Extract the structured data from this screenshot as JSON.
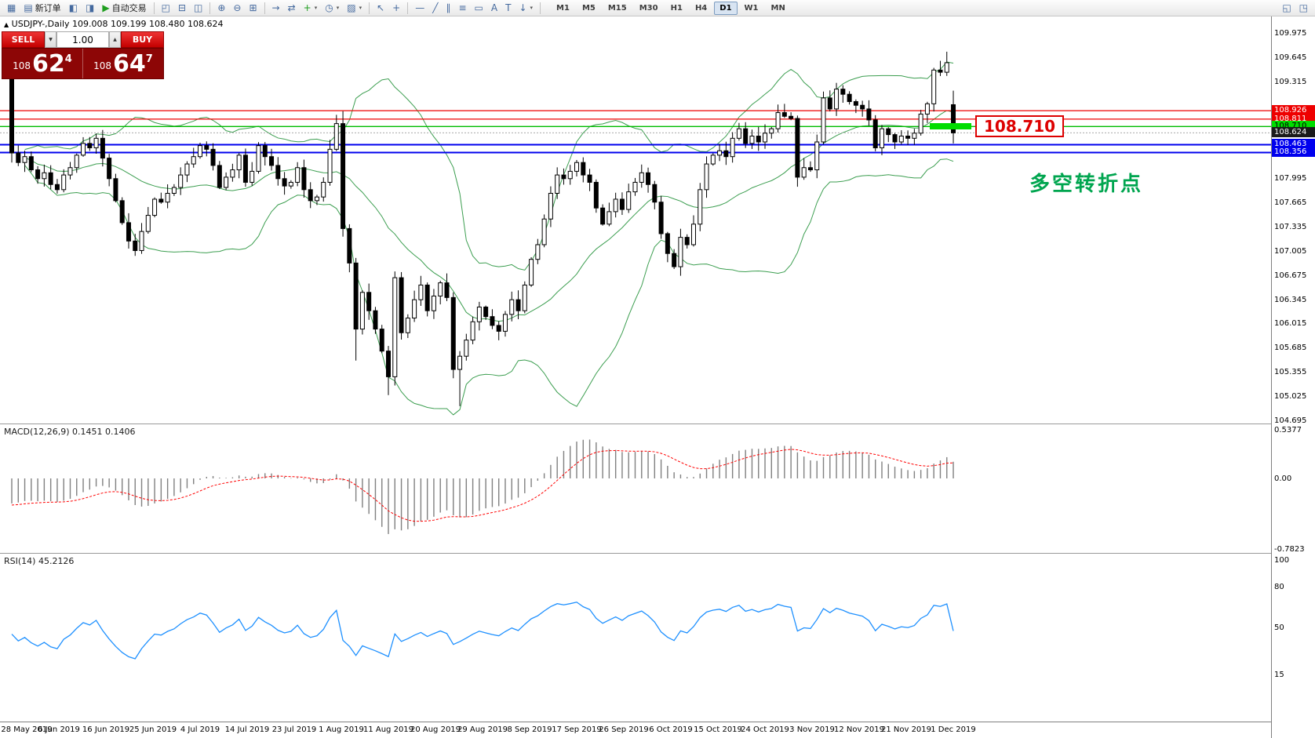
{
  "toolbar": {
    "caret_glyph": "▾",
    "items": [
      {
        "name": "new-chart-button",
        "glyph": "▦"
      },
      {
        "name": "new-order-button",
        "glyph": "▤",
        "label": "新订单"
      },
      {
        "name": "market-watch-icon",
        "glyph": "◧"
      },
      {
        "name": "navigator-icon",
        "glyph": "◨"
      },
      {
        "name": "autotrading-button",
        "glyph": "▶",
        "label": "自动交易",
        "color": "#1f9e1f"
      },
      {
        "type": "sep"
      },
      {
        "name": "tile-cascade-icon",
        "glyph": "◰"
      },
      {
        "name": "tile-horizontal-icon",
        "glyph": "⊟"
      },
      {
        "name": "tile-vertical-icon",
        "glyph": "◫"
      },
      {
        "type": "sep"
      },
      {
        "name": "zoom-in-icon",
        "glyph": "⊕"
      },
      {
        "name": "zoom-out-icon",
        "glyph": "⊖"
      },
      {
        "name": "grid-icon",
        "glyph": "⊞"
      },
      {
        "type": "sep"
      },
      {
        "name": "auto-scroll-icon",
        "glyph": "→"
      },
      {
        "name": "chart-shift-icon",
        "glyph": "⇄"
      },
      {
        "name": "add-indicator-button",
        "glyph": "+",
        "color": "#1f9e1f",
        "caret": true
      },
      {
        "name": "periodicity-button",
        "glyph": "◷",
        "caret": true
      },
      {
        "name": "templates-button",
        "glyph": "▨",
        "caret": true
      },
      {
        "type": "sep"
      },
      {
        "name": "cursor-icon",
        "glyph": "↖"
      },
      {
        "name": "crosshair-icon",
        "glyph": "+"
      },
      {
        "type": "sep"
      },
      {
        "name": "horizontal-line-icon",
        "glyph": "—"
      },
      {
        "name": "trendline-icon",
        "glyph": "╱"
      },
      {
        "name": "channel-icon",
        "glyph": "∥"
      },
      {
        "name": "fibonacci-icon",
        "glyph": "≡"
      },
      {
        "name": "shapes-icon",
        "glyph": "▭"
      },
      {
        "name": "text-icon",
        "glyph": "A"
      },
      {
        "name": "label-icon",
        "glyph": "T"
      },
      {
        "name": "arrows-icon",
        "glyph": "↓",
        "caret": true
      },
      {
        "type": "sep"
      }
    ],
    "timeframes": [
      "M1",
      "M5",
      "M15",
      "M30",
      "H1",
      "H4",
      "D1",
      "W1",
      "MN"
    ],
    "active_timeframe": "D1",
    "right_icons": [
      {
        "name": "charts-bar-icon",
        "glyph": "◱"
      },
      {
        "name": "docking-icon",
        "glyph": "◳"
      }
    ]
  },
  "chart_info": {
    "symbol_marker": "▲",
    "symbol_line": "USDJPY-,Daily",
    "ohlc": "109.008 109.199 108.480 108.624"
  },
  "trade_panel": {
    "sell_label": "SELL",
    "buy_label": "BUY",
    "volume": "1.00",
    "spin_up": "▲",
    "spin_down": "▼",
    "sell_price_small": "108",
    "sell_price_big": "62",
    "sell_price_sup": "4",
    "buy_price_small": "108",
    "buy_price_big": "64",
    "buy_price_sup": "7"
  },
  "annotations": {
    "price_callout": "108.710",
    "pivot_price": 108.71,
    "note_text": "多空转折点",
    "note_color": "#00a54f"
  },
  "price_axis": {
    "regular": [
      "109.975",
      "109.645",
      "109.315",
      "107.995",
      "107.665",
      "107.335",
      "107.005",
      "106.675",
      "106.345",
      "106.015",
      "105.685",
      "105.355",
      "105.025",
      "104.695"
    ],
    "marked": [
      {
        "value": "108.926",
        "bg": "#ee0000"
      },
      {
        "value": "108.811",
        "bg": "#ee0000"
      },
      {
        "value": "108.710",
        "bg": "#00dd00",
        "fg": "#000000"
      },
      {
        "value": "108.624",
        "bg": "#1a1a1a"
      },
      {
        "value": "108.463",
        "bg": "#0000ee"
      },
      {
        "value": "108.356",
        "bg": "#0000ee"
      }
    ]
  },
  "macd": {
    "label": "MACD(12,26,9) 0.1451 0.1406",
    "axis": [
      "0.5377",
      "0.00",
      "-0.7823"
    ]
  },
  "rsi": {
    "label": "RSI(14) 45.2126",
    "axis": [
      "100",
      "80",
      "50",
      "15"
    ]
  },
  "time_axis": [
    "28 May 2019",
    "6 Jun 2019",
    "16 Jun 2019",
    "25 Jun 2019",
    "4 Jul 2019",
    "14 Jul 2019",
    "23 Jul 2019",
    "1 Aug 2019",
    "11 Aug 2019",
    "20 Aug 2019",
    "29 Aug 2019",
    "8 Sep 2019",
    "17 Sep 2019",
    "26 Sep 2019",
    "6 Oct 2019",
    "15 Oct 2019",
    "24 Oct 2019",
    "3 Nov 2019",
    "12 Nov 2019",
    "21 Nov 2019",
    "1 Dec 2019"
  ],
  "colors": {
    "bollinger": "#3c9e50",
    "candle_up": "#ffffff",
    "candle_down": "#000000",
    "candle_outline": "#000000",
    "macd_hist": "#808080",
    "macd_signal": "#ff0000",
    "rsi_line": "#1e90ff",
    "highlight_green": "#00dd00",
    "bid_line": "#aaaaaa"
  },
  "chart_data": {
    "type": "candlestick",
    "symbol": "USDJPY-",
    "timeframe": "Daily",
    "last_ohlc": {
      "open": 109.008,
      "high": 109.199,
      "low": 108.48,
      "close": 108.624
    },
    "price_range": [
      104.695,
      109.975
    ],
    "closes": [
      108.35,
      108.22,
      108.3,
      108.12,
      108.0,
      108.08,
      107.92,
      107.85,
      108.05,
      108.15,
      108.32,
      108.48,
      108.42,
      108.55,
      108.28,
      108.0,
      107.7,
      107.4,
      107.15,
      107.02,
      107.28,
      107.5,
      107.72,
      107.68,
      107.8,
      107.88,
      108.05,
      108.2,
      108.3,
      108.45,
      108.4,
      108.18,
      107.88,
      108.02,
      108.12,
      108.32,
      107.95,
      108.1,
      108.45,
      108.3,
      108.18,
      108.0,
      107.9,
      107.95,
      108.15,
      107.85,
      107.7,
      107.75,
      107.95,
      108.4,
      108.75,
      107.32,
      106.85,
      105.95,
      106.45,
      106.2,
      105.95,
      105.65,
      105.3,
      106.65,
      105.9,
      106.1,
      106.35,
      106.55,
      106.2,
      106.4,
      106.58,
      106.38,
      105.4,
      105.58,
      105.8,
      106.05,
      106.25,
      106.12,
      106.0,
      105.92,
      106.15,
      106.35,
      106.2,
      106.55,
      106.9,
      107.1,
      107.45,
      107.8,
      108.05,
      108.0,
      108.1,
      108.22,
      108.05,
      107.95,
      107.6,
      107.38,
      107.55,
      107.72,
      107.58,
      107.82,
      107.95,
      108.08,
      107.92,
      107.68,
      107.25,
      106.98,
      106.8,
      107.2,
      107.1,
      107.38,
      107.85,
      108.2,
      108.32,
      108.38,
      108.3,
      108.55,
      108.68,
      108.48,
      108.58,
      108.5,
      108.62,
      108.68,
      108.9,
      108.85,
      108.82,
      108.02,
      108.15,
      108.12,
      108.5,
      109.1,
      108.95,
      109.22,
      109.15,
      109.05,
      109.0,
      108.95,
      108.8,
      108.42,
      108.68,
      108.6,
      108.5,
      108.58,
      108.55,
      108.62,
      108.88,
      109.02,
      109.48,
      109.45,
      109.58,
      108.624
    ],
    "candle_overrides": {
      "0": [
        109.45,
        109.58,
        108.22,
        108.35
      ],
      "51": [
        108.75,
        108.92,
        107.21,
        107.32
      ],
      "53": [
        106.85,
        106.92,
        105.52,
        105.95
      ],
      "58": [
        105.65,
        105.72,
        105.05,
        105.3
      ],
      "68": [
        106.38,
        106.45,
        105.28,
        105.4
      ],
      "69": [
        105.4,
        105.65,
        104.9,
        105.58
      ],
      "121": [
        108.82,
        108.86,
        107.89,
        108.02
      ],
      "144": [
        109.45,
        109.73,
        109.4,
        109.58
      ],
      "145": [
        109.008,
        109.199,
        108.48,
        108.624
      ]
    },
    "overlays": {
      "bollinger_period": 20,
      "bollinger_deviation": 2
    },
    "horizontal_lines": [
      {
        "price": 108.926,
        "color": "#ee0000",
        "width": 1.2
      },
      {
        "price": 108.811,
        "color": "#ee0000",
        "width": 1.2
      },
      {
        "price": 108.71,
        "color": "#00bb00",
        "width": 1.4
      },
      {
        "price": 108.463,
        "color": "#0000ee",
        "width": 2
      },
      {
        "price": 108.356,
        "color": "#0000ee",
        "width": 2
      }
    ],
    "indicators": [
      {
        "name": "MACD",
        "params": [
          12,
          26,
          9
        ],
        "current": [
          0.1451,
          0.1406
        ],
        "scale": [
          -0.7823,
          0.5377
        ]
      },
      {
        "name": "RSI",
        "params": [
          14
        ],
        "current": 45.2126,
        "scale_labels": [
          100,
          80,
          50,
          15
        ]
      }
    ]
  }
}
